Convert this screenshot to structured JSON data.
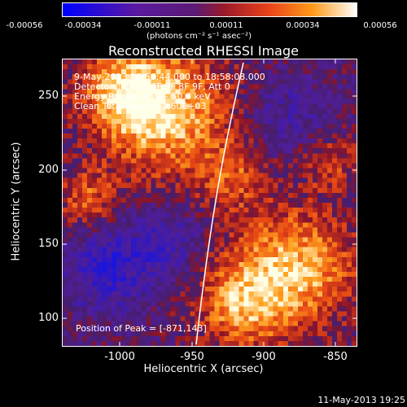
{
  "colorbar": {
    "ticks": [
      "-0.00056",
      "-0.00034",
      "-0.00011",
      "0.00011",
      "0.00034",
      "0.00056"
    ],
    "unit": "(photons cm⁻² s⁻¹ asec⁻²)"
  },
  "title": "Reconstructed RHESSI Image",
  "annotations": {
    "time": "9-May-2013 18:56:44.000 to 18:58:08.000",
    "detectors": "Detectors: 3F 5F 6F 7F 8F 9F, Att 0",
    "energy": "Energy Range: 25.0 - 50.0 keV",
    "clean": "Clean    Total counts: 2.60E+03",
    "peak": "Position of Peak = [-871,143]"
  },
  "axes": {
    "xlabel": "Heliocentric X (arcsec)",
    "ylabel": "Heliocentric Y (arcsec)",
    "xticks": [
      "-1000",
      "-950",
      "-900",
      "-850"
    ],
    "yticks": [
      "250",
      "200",
      "150",
      "100"
    ]
  },
  "timestamp": "11-May-2013 19:25",
  "colors": {
    "background": "#000000",
    "text": "#ffffff"
  }
}
